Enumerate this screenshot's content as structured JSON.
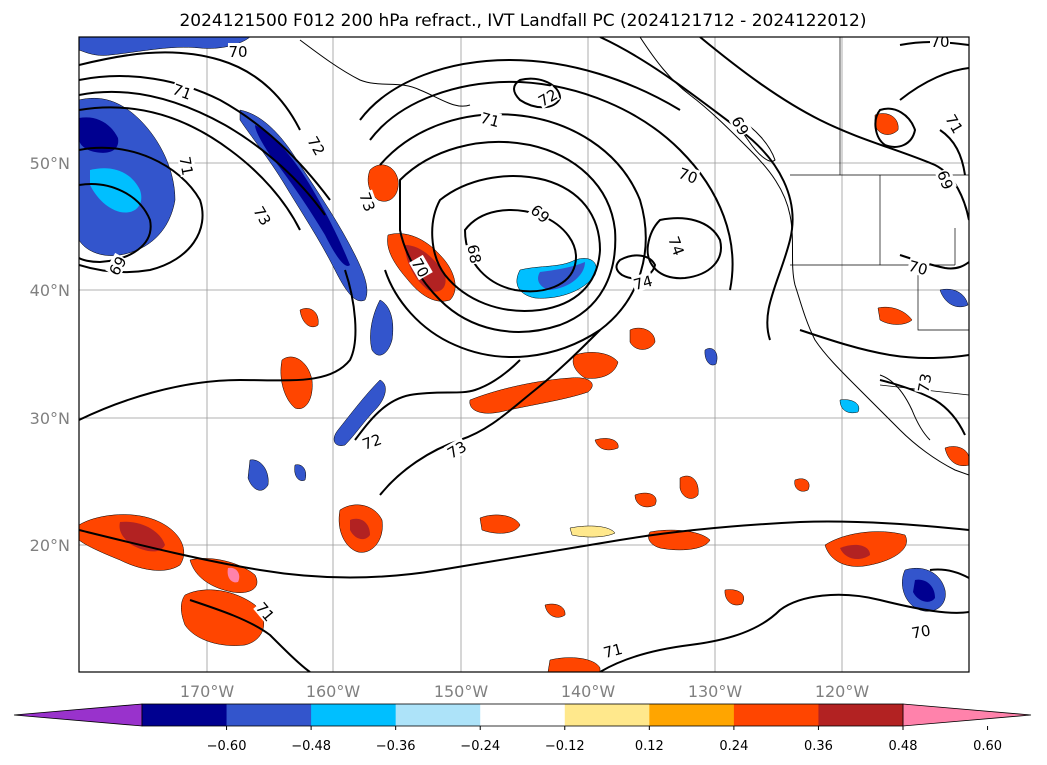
{
  "title": "2024121500 F012 200 hPa refract., IVT Landfall PC (2024121712 - 2024122012)",
  "chart_data": {
    "type": "map",
    "x_ticks": [
      "170°W",
      "160°W",
      "150°W",
      "140°W",
      "130°W",
      "120°W"
    ],
    "y_ticks": [
      "50°N",
      "40°N",
      "30°N",
      "20°N"
    ],
    "contour_labels": [
      "70",
      "71",
      "72",
      "73",
      "69",
      "73",
      "72",
      "70",
      "71",
      "69",
      "68",
      "70",
      "74",
      "74",
      "70",
      "69",
      "72",
      "73",
      "71",
      "71",
      "71",
      "70",
      "69",
      "71",
      "73",
      "70"
    ],
    "colorbar": {
      "colors": [
        "#9932CC",
        "#000090",
        "#3355CC",
        "#00BFFF",
        "#ADE3F9",
        "#FFFFFF",
        "#FFE88C",
        "#FFA500",
        "#FF4500",
        "#B22222",
        "#FF82AB"
      ],
      "ticks": [
        "−0.60",
        "−0.48",
        "−0.36",
        "−0.24",
        "−0.12",
        "0.12",
        "0.24",
        "0.36",
        "0.48",
        "0.60"
      ]
    }
  }
}
